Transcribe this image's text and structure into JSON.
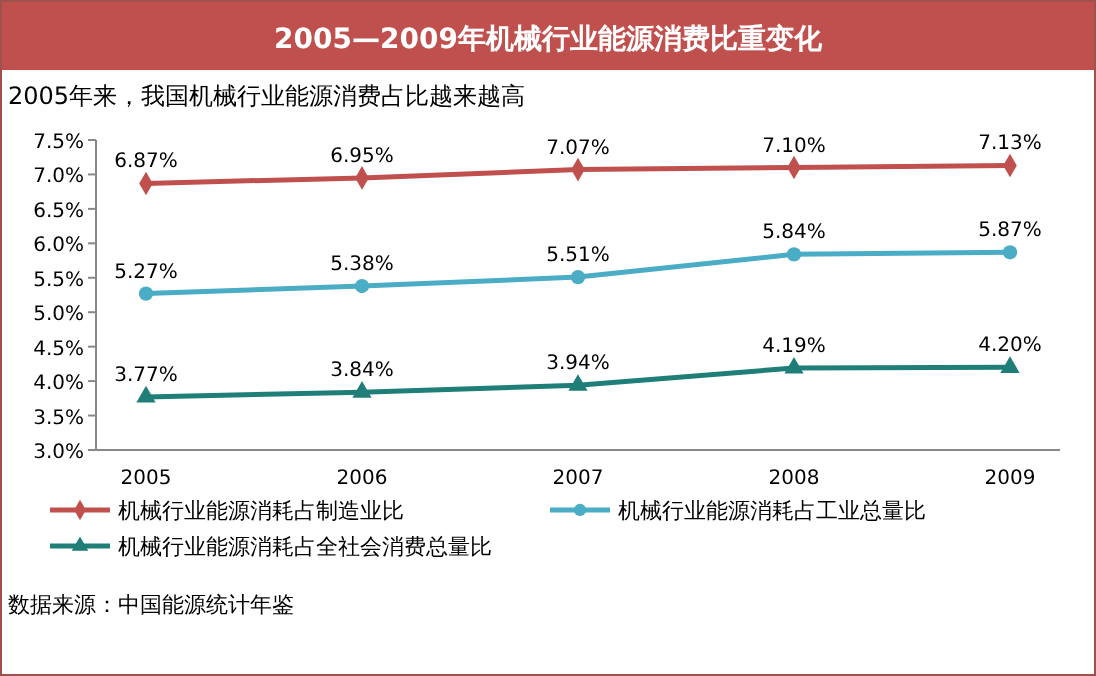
{
  "chart_data": {
    "type": "line",
    "title": "2005—2009年机械行业能源消费比重变化",
    "subtitle": "2005年来，我国机械行业能源消费占比越来越高",
    "categories": [
      "2005",
      "2006",
      "2007",
      "2008",
      "2009"
    ],
    "series": [
      {
        "name": "机械行业能源消耗占制造业比",
        "color": "#c0504d",
        "marker": "diamond",
        "values": [
          6.87,
          6.95,
          7.07,
          7.1,
          7.13
        ],
        "value_labels": [
          "6.87%",
          "6.95%",
          "7.07%",
          "7.10%",
          "7.13%"
        ]
      },
      {
        "name": "机械行业能源消耗占工业总量比",
        "color": "#4bacc6",
        "marker": "circle",
        "values": [
          5.27,
          5.38,
          5.51,
          5.84,
          5.87
        ],
        "value_labels": [
          "5.27%",
          "5.38%",
          "5.51%",
          "5.84%",
          "5.87%"
        ]
      },
      {
        "name": "机械行业能源消耗占全社会消费总量比",
        "color": "#1f7f78",
        "marker": "triangle",
        "values": [
          3.77,
          3.84,
          3.94,
          4.19,
          4.2
        ],
        "value_labels": [
          "3.77%",
          "3.84%",
          "3.94%",
          "4.19%",
          "4.20%"
        ]
      }
    ],
    "ylim": [
      3.0,
      7.5
    ],
    "yticks": [
      {
        "value": 3.0,
        "label": "3.0%"
      },
      {
        "value": 3.5,
        "label": "3.5%"
      },
      {
        "value": 4.0,
        "label": "4.0%"
      },
      {
        "value": 4.5,
        "label": "4.5%"
      },
      {
        "value": 5.0,
        "label": "5.0%"
      },
      {
        "value": 5.5,
        "label": "5.5%"
      },
      {
        "value": 6.0,
        "label": "6.0%"
      },
      {
        "value": 6.5,
        "label": "6.5%"
      },
      {
        "value": 7.0,
        "label": "7.0%"
      },
      {
        "value": 7.5,
        "label": "7.5%"
      }
    ],
    "grid": false,
    "legend": "bottom",
    "line_style": "solid",
    "annotations": [
      "数据来源：中国能源统计年鉴"
    ]
  }
}
